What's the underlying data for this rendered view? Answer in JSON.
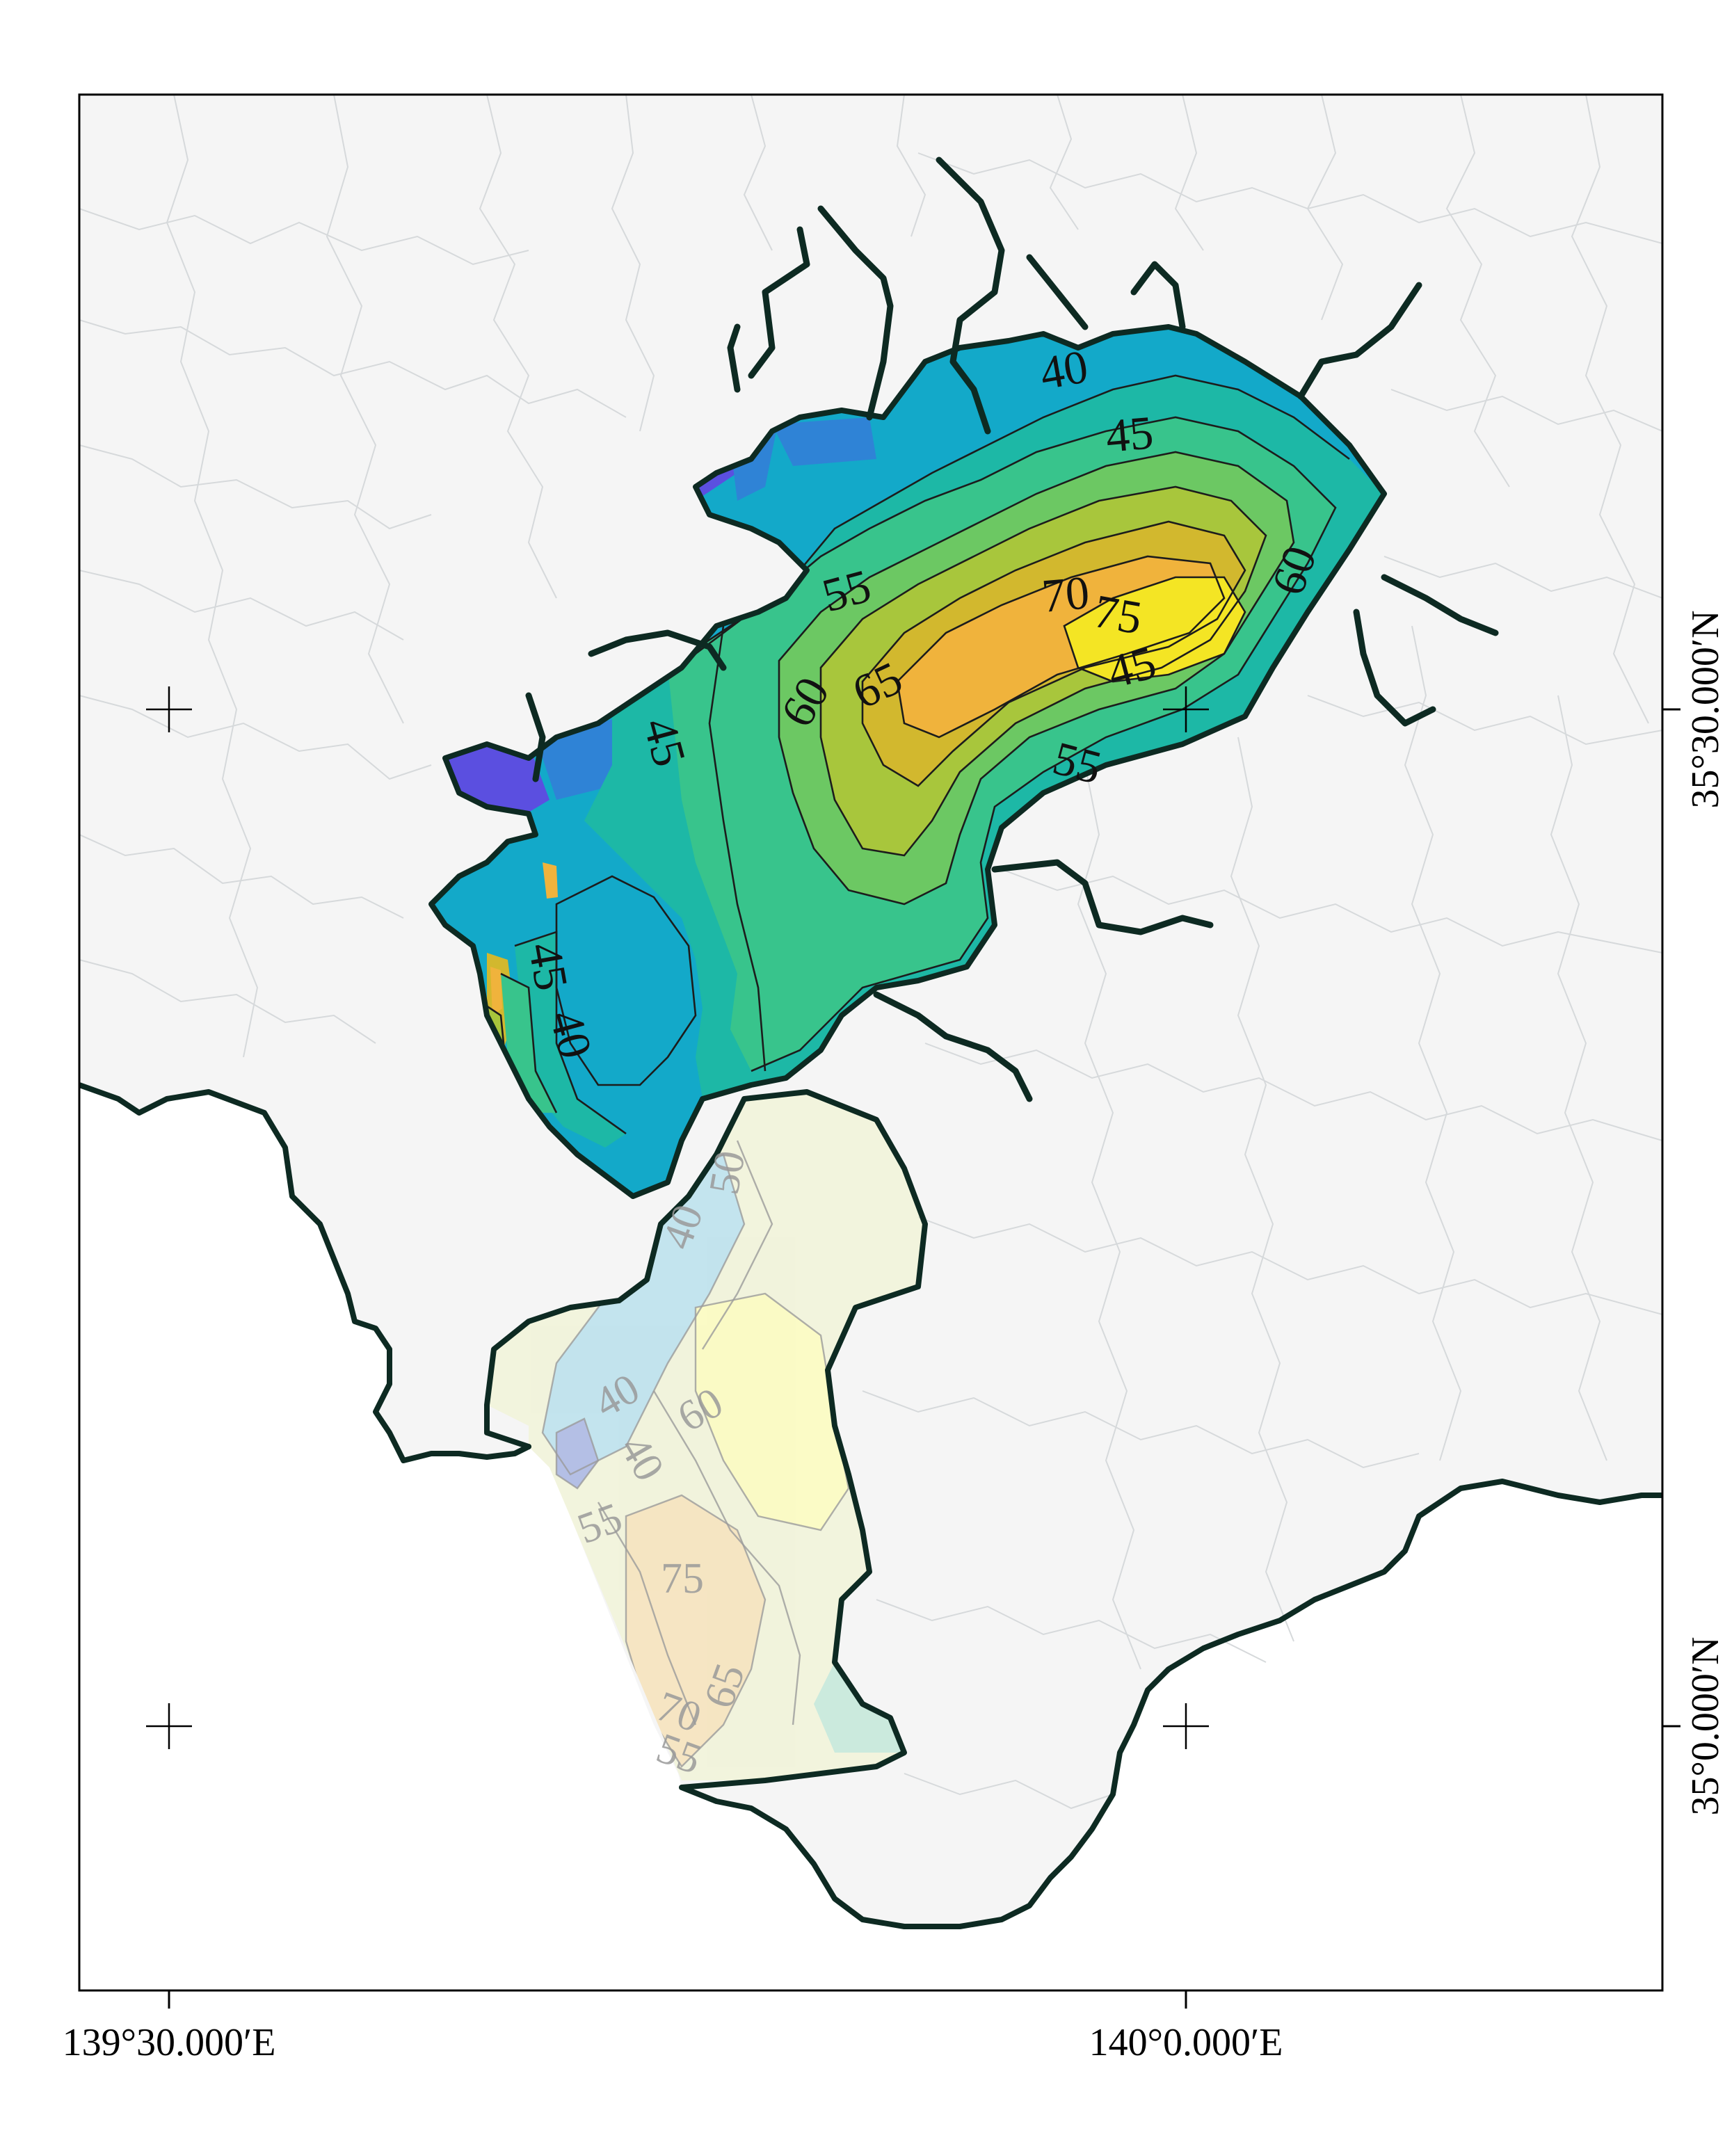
{
  "map": {
    "graticule": {
      "lon_labels": [
        "139°30.000′E",
        "140°0.000′E"
      ],
      "lat_labels": [
        "35°30.000′N",
        "35°0.000′N"
      ]
    },
    "colors": {
      "land": "#f5f5f5",
      "sea": "#ffffff",
      "coastline": "#0d2a22",
      "admin_boundaries": "#d6d9db",
      "contour_lines": "#1c1c1c",
      "scale": [
        "#5b4fe0",
        "#2f83d6",
        "#13a9c9",
        "#1db8a6",
        "#38c48c",
        "#6cc863",
        "#a8c63c",
        "#d2b82e",
        "#f0b33c",
        "#f4e524"
      ]
    },
    "main_field": {
      "contour_labels": [
        "40",
        "45",
        "45",
        "45",
        "55",
        "55",
        "60",
        "60",
        "65",
        "70",
        "75",
        "40",
        "45"
      ]
    },
    "faded_field": {
      "contour_labels": [
        "40",
        "50",
        "40",
        "60",
        "55",
        "75",
        "65",
        "70",
        "40",
        "55"
      ]
    }
  }
}
